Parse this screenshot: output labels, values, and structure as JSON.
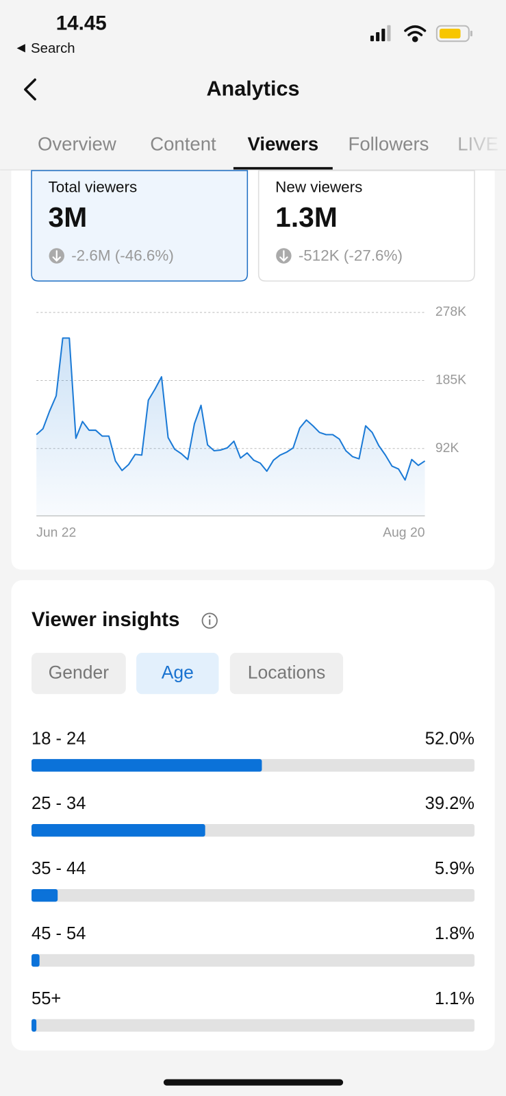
{
  "status_bar": {
    "time": "14.45",
    "back": "Search"
  },
  "header": {
    "title": "Analytics"
  },
  "tabs": {
    "items": [
      "Overview",
      "Content",
      "Viewers",
      "Followers",
      "LIVE"
    ],
    "active": 2
  },
  "metrics": [
    {
      "label": "Total viewers",
      "value": "3M",
      "change": "-2.6M (-46.6%)",
      "selected": true
    },
    {
      "label": "New viewers",
      "value": "1.3M",
      "change": "-512K (-27.6%)",
      "selected": false
    }
  ],
  "insights": {
    "title": "Viewer insights",
    "filters": [
      "Gender",
      "Age",
      "Locations"
    ],
    "active": 1
  },
  "chart_data": [
    {
      "type": "line",
      "categories": [
        "Jun 22",
        null,
        null,
        null,
        null,
        null,
        null,
        null,
        null,
        null,
        null,
        null,
        null,
        null,
        null,
        null,
        null,
        null,
        null,
        null,
        null,
        null,
        null,
        null,
        null,
        null,
        null,
        null,
        null,
        null,
        null,
        null,
        null,
        null,
        null,
        null,
        null,
        null,
        null,
        null,
        null,
        null,
        null,
        null,
        null,
        null,
        null,
        null,
        null,
        null,
        null,
        null,
        null,
        null,
        null,
        null,
        null,
        null,
        null,
        "Aug 20"
      ],
      "values": [
        111000,
        119000,
        143000,
        164000,
        243000,
        243000,
        106000,
        129000,
        117000,
        117000,
        109000,
        109000,
        75000,
        62000,
        70000,
        84000,
        83000,
        158000,
        173000,
        190000,
        107000,
        91000,
        85000,
        77000,
        126000,
        151000,
        97000,
        89000,
        90000,
        93000,
        102000,
        79000,
        86000,
        76000,
        72000,
        61000,
        76000,
        83000,
        87000,
        93000,
        120000,
        131000,
        123000,
        114000,
        111000,
        111000,
        105000,
        89000,
        81000,
        78000,
        123000,
        114000,
        96000,
        83000,
        68000,
        64000,
        49000,
        77000,
        69000,
        75000
      ],
      "color": "#1b7ad6",
      "ylim": [
        0,
        278000
      ],
      "yticks": [
        {
          "value": 92000,
          "label": "92K"
        },
        {
          "value": 185000,
          "label": "185K"
        },
        {
          "value": 278000,
          "label": "278K"
        }
      ],
      "grid": true
    },
    {
      "type": "bar",
      "orientation": "horizontal",
      "categories": [
        "18 - 24",
        "25 - 34",
        "35 - 44",
        "45 - 54",
        "55+"
      ],
      "values": [
        52.0,
        39.2,
        5.9,
        1.8,
        1.1
      ],
      "value_labels": [
        "52.0%",
        "39.2%",
        "5.9%",
        "1.8%",
        "1.1%"
      ],
      "xlim": [
        0,
        100
      ],
      "color": "#0b72d9"
    }
  ]
}
